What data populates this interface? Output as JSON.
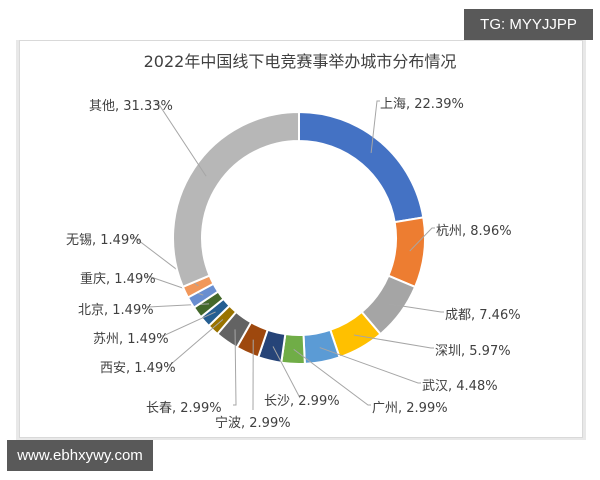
{
  "watermarks": {
    "top_right": "TG: MYYJJPP",
    "bottom_left": "www.ebhxywy.com"
  },
  "chart_data": {
    "type": "pie",
    "variant": "donut",
    "title": "2022年中国线下电竞赛事举办城市分布情况",
    "categories": [
      "上海",
      "杭州",
      "成都",
      "深圳",
      "武汉",
      "广州",
      "长沙",
      "宁波",
      "长春",
      "西安",
      "苏州",
      "北京",
      "重庆",
      "无锡",
      "其他"
    ],
    "values": [
      22.39,
      8.96,
      7.46,
      5.97,
      4.48,
      2.99,
      2.99,
      2.99,
      2.99,
      1.49,
      1.49,
      1.49,
      1.49,
      1.49,
      31.33
    ],
    "unit": "%",
    "colors": [
      "#4472c4",
      "#ed7d31",
      "#a5a5a5",
      "#ffc000",
      "#5b9bd5",
      "#70ad47",
      "#264478",
      "#9e480e",
      "#636363",
      "#997300",
      "#255e91",
      "#43682b",
      "#698ed0",
      "#f1975a",
      "#b7b7b7"
    ],
    "labels": [
      "上海, 22.39%",
      "杭州, 8.96%",
      "成都, 7.46%",
      "深圳, 5.97%",
      "武汉, 4.48%",
      "广州, 2.99%",
      "长沙, 2.99%",
      "宁波, 2.99%",
      "长春, 2.99%",
      "西安, 1.49%",
      "苏州, 1.49%",
      "北京, 1.49%",
      "重庆, 1.49%",
      "无锡, 1.49%",
      "其他, 31.33%"
    ],
    "legend": "none (data labels with leader lines)",
    "start_angle": "12 o'clock, clockwise"
  }
}
